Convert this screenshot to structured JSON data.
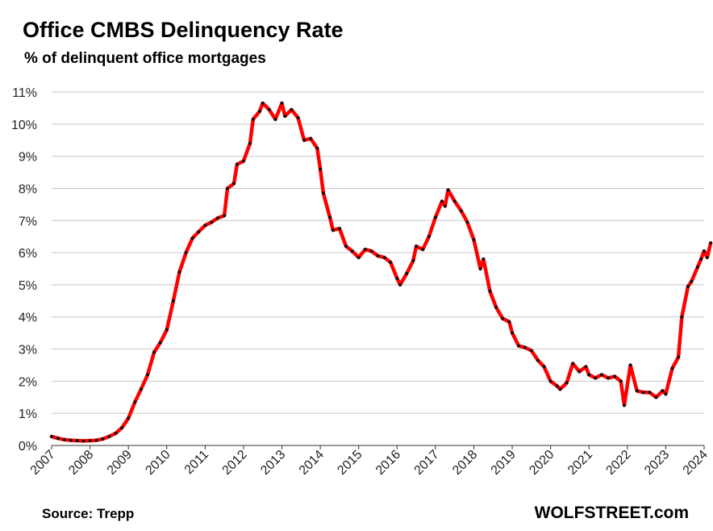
{
  "header": {
    "title": "Office CMBS Delinquency Rate",
    "subtitle": "% of delinquent office mortgages"
  },
  "footer": {
    "source": "Source: Trepp",
    "brand": "WOLFSTREET.com"
  },
  "colors": {
    "line": "#ff0000",
    "marker": "#111111",
    "grid": "#c8c8c8",
    "axis": "#333333"
  },
  "chart_data": {
    "type": "line",
    "title": "Office CMBS Delinquency Rate",
    "subtitle": "% of delinquent office mortgages",
    "xlabel": "",
    "ylabel": "",
    "xlim": [
      2007,
      2024
    ],
    "ylim": [
      0,
      11
    ],
    "grid": true,
    "legend": "none",
    "y_ticks": [
      {
        "value": 0,
        "label": "0%"
      },
      {
        "value": 1,
        "label": "1%"
      },
      {
        "value": 2,
        "label": "2%"
      },
      {
        "value": 3,
        "label": "3%"
      },
      {
        "value": 4,
        "label": "4%"
      },
      {
        "value": 5,
        "label": "5%"
      },
      {
        "value": 6,
        "label": "6%"
      },
      {
        "value": 7,
        "label": "7%"
      },
      {
        "value": 8,
        "label": "8%"
      },
      {
        "value": 9,
        "label": "9%"
      },
      {
        "value": 10,
        "label": "10%"
      },
      {
        "value": 11,
        "label": "11%"
      }
    ],
    "x_ticks": [
      {
        "value": 2007,
        "label": "2007"
      },
      {
        "value": 2008,
        "label": "2008"
      },
      {
        "value": 2009,
        "label": "2009"
      },
      {
        "value": 2010,
        "label": "2010"
      },
      {
        "value": 2011,
        "label": "2011"
      },
      {
        "value": 2012,
        "label": "2012"
      },
      {
        "value": 2013,
        "label": "2013"
      },
      {
        "value": 2014,
        "label": "2014"
      },
      {
        "value": 2015,
        "label": "2015"
      },
      {
        "value": 2016,
        "label": "2016"
      },
      {
        "value": 2017,
        "label": "2017"
      },
      {
        "value": 2018,
        "label": "2018"
      },
      {
        "value": 2019,
        "label": "2019"
      },
      {
        "value": 2020,
        "label": "2020"
      },
      {
        "value": 2021,
        "label": "2021"
      },
      {
        "value": 2022,
        "label": "2022"
      },
      {
        "value": 2023,
        "label": "2023"
      },
      {
        "value": 2024,
        "label": "2024"
      }
    ],
    "series": [
      {
        "name": "Office CMBS Delinquency Rate (%)",
        "points": [
          [
            2007.0,
            0.28
          ],
          [
            2007.17,
            0.22
          ],
          [
            2007.33,
            0.18
          ],
          [
            2007.5,
            0.16
          ],
          [
            2007.67,
            0.15
          ],
          [
            2007.83,
            0.14
          ],
          [
            2008.0,
            0.15
          ],
          [
            2008.17,
            0.16
          ],
          [
            2008.33,
            0.2
          ],
          [
            2008.5,
            0.28
          ],
          [
            2008.67,
            0.38
          ],
          [
            2008.83,
            0.55
          ],
          [
            2009.0,
            0.85
          ],
          [
            2009.17,
            1.35
          ],
          [
            2009.33,
            1.75
          ],
          [
            2009.5,
            2.2
          ],
          [
            2009.67,
            2.9
          ],
          [
            2009.83,
            3.2
          ],
          [
            2010.0,
            3.6
          ],
          [
            2010.17,
            4.5
          ],
          [
            2010.33,
            5.4
          ],
          [
            2010.5,
            6.0
          ],
          [
            2010.67,
            6.45
          ],
          [
            2010.83,
            6.65
          ],
          [
            2011.0,
            6.85
          ],
          [
            2011.17,
            6.95
          ],
          [
            2011.33,
            7.08
          ],
          [
            2011.5,
            7.15
          ],
          [
            2011.58,
            8.0
          ],
          [
            2011.75,
            8.15
          ],
          [
            2011.83,
            8.75
          ],
          [
            2012.0,
            8.85
          ],
          [
            2012.17,
            9.4
          ],
          [
            2012.25,
            10.15
          ],
          [
            2012.42,
            10.4
          ],
          [
            2012.5,
            10.65
          ],
          [
            2012.67,
            10.45
          ],
          [
            2012.83,
            10.15
          ],
          [
            2013.0,
            10.65
          ],
          [
            2013.08,
            10.25
          ],
          [
            2013.25,
            10.45
          ],
          [
            2013.42,
            10.2
          ],
          [
            2013.58,
            9.5
          ],
          [
            2013.75,
            9.55
          ],
          [
            2013.92,
            9.25
          ],
          [
            2014.0,
            8.6
          ],
          [
            2014.08,
            7.85
          ],
          [
            2014.25,
            7.1
          ],
          [
            2014.33,
            6.7
          ],
          [
            2014.5,
            6.75
          ],
          [
            2014.67,
            6.2
          ],
          [
            2014.83,
            6.05
          ],
          [
            2015.0,
            5.85
          ],
          [
            2015.17,
            6.1
          ],
          [
            2015.33,
            6.05
          ],
          [
            2015.5,
            5.9
          ],
          [
            2015.67,
            5.85
          ],
          [
            2015.83,
            5.7
          ],
          [
            2016.0,
            5.2
          ],
          [
            2016.08,
            5.0
          ],
          [
            2016.25,
            5.35
          ],
          [
            2016.42,
            5.75
          ],
          [
            2016.5,
            6.2
          ],
          [
            2016.67,
            6.1
          ],
          [
            2016.83,
            6.5
          ],
          [
            2017.0,
            7.1
          ],
          [
            2017.17,
            7.6
          ],
          [
            2017.25,
            7.45
          ],
          [
            2017.33,
            7.95
          ],
          [
            2017.5,
            7.6
          ],
          [
            2017.67,
            7.3
          ],
          [
            2017.83,
            6.95
          ],
          [
            2018.0,
            6.4
          ],
          [
            2018.17,
            5.5
          ],
          [
            2018.25,
            5.8
          ],
          [
            2018.42,
            4.8
          ],
          [
            2018.58,
            4.3
          ],
          [
            2018.75,
            3.95
          ],
          [
            2018.92,
            3.85
          ],
          [
            2019.0,
            3.5
          ],
          [
            2019.17,
            3.1
          ],
          [
            2019.33,
            3.05
          ],
          [
            2019.5,
            2.95
          ],
          [
            2019.67,
            2.65
          ],
          [
            2019.83,
            2.45
          ],
          [
            2020.0,
            2.0
          ],
          [
            2020.17,
            1.85
          ],
          [
            2020.25,
            1.75
          ],
          [
            2020.42,
            1.95
          ],
          [
            2020.58,
            2.55
          ],
          [
            2020.75,
            2.3
          ],
          [
            2020.92,
            2.45
          ],
          [
            2021.0,
            2.2
          ],
          [
            2021.17,
            2.1
          ],
          [
            2021.33,
            2.2
          ],
          [
            2021.5,
            2.1
          ],
          [
            2021.67,
            2.15
          ],
          [
            2021.83,
            2.0
          ],
          [
            2021.92,
            1.25
          ],
          [
            2022.08,
            2.5
          ],
          [
            2022.25,
            1.7
          ],
          [
            2022.42,
            1.65
          ],
          [
            2022.58,
            1.65
          ],
          [
            2022.75,
            1.5
          ],
          [
            2022.92,
            1.7
          ],
          [
            2023.0,
            1.6
          ],
          [
            2023.17,
            2.4
          ],
          [
            2023.33,
            2.75
          ],
          [
            2023.42,
            4.0
          ],
          [
            2023.58,
            4.95
          ],
          [
            2023.67,
            5.1
          ],
          [
            2023.83,
            5.55
          ],
          [
            2023.92,
            5.8
          ],
          [
            2024.0,
            6.05
          ],
          [
            2024.08,
            5.85
          ],
          [
            2024.17,
            6.3
          ]
        ]
      }
    ]
  }
}
